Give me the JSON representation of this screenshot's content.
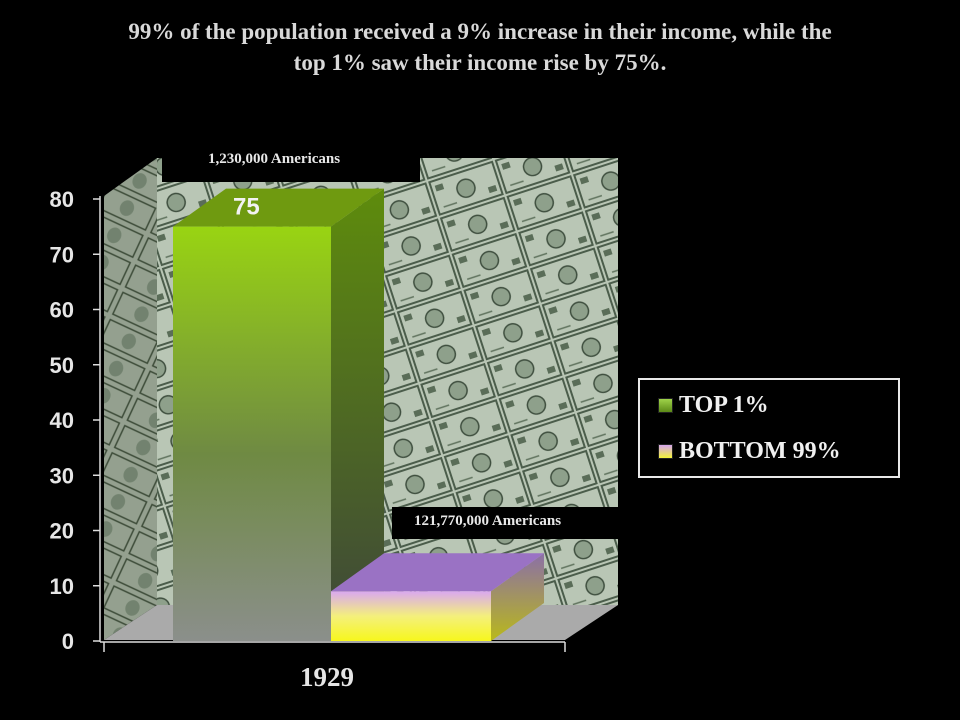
{
  "title_line1": "99% of  the population received a 9% increase in their income, while the",
  "title_line2": "top 1% saw their income rise by 75%.",
  "chart_data": {
    "type": "bar",
    "categories": [
      "1929"
    ],
    "series": [
      {
        "name": "TOP 1%",
        "values": [
          75
        ],
        "color": "#7db513"
      },
      {
        "name": "BOTTOM 99%",
        "values": [
          9
        ],
        "color": "#f2f23c"
      }
    ],
    "ylim": [
      0,
      80
    ],
    "yticks": [
      0,
      10,
      20,
      30,
      40,
      50,
      60,
      70,
      80
    ],
    "xlabel": "",
    "ylabel": "",
    "data_labels": [
      "75"
    ],
    "annotations": [
      "1,230,000 Americans",
      "121,770,000 Americans"
    ],
    "legend_position": "right",
    "style": "3d",
    "background": "dollar-bills-image"
  }
}
